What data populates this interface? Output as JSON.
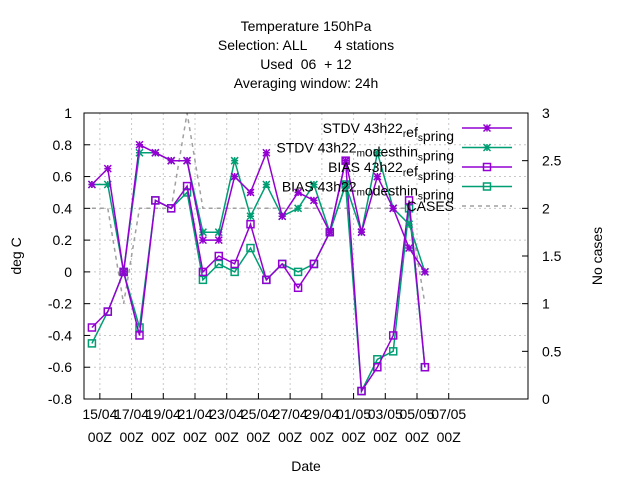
{
  "chart_data": {
    "type": "line",
    "title_lines": [
      "Temperature 150hPa",
      "Selection: ALL       4 stations",
      "Used  06  + 12",
      "Averaging window: 24h"
    ],
    "xlabel": "Date",
    "ylabel": "deg C",
    "y2label": "No cases",
    "ylim": [
      -0.8,
      1.0
    ],
    "y2lim": [
      0,
      3
    ],
    "yticks": [
      "1",
      "0.8",
      "0.6",
      "0.4",
      "0.2",
      "0",
      "-0.2",
      "-0.4",
      "-0.6",
      "-0.8"
    ],
    "y2ticks": [
      "3",
      "2.5",
      "2",
      "1.5",
      "1",
      "0.5",
      "0"
    ],
    "x_tick_labels": [
      [
        "15/04",
        "00Z"
      ],
      [
        "17/04",
        "00Z"
      ],
      [
        "19/04",
        "00Z"
      ],
      [
        "21/04",
        "00Z"
      ],
      [
        "23/04",
        "00Z"
      ],
      [
        "25/04",
        "00Z"
      ],
      [
        "27/04",
        "00Z"
      ],
      [
        "29/04",
        "00Z"
      ],
      [
        "01/05",
        "00Z"
      ],
      [
        "03/05",
        "00Z"
      ],
      [
        "05/05",
        "00Z"
      ],
      [
        "07/05",
        "00Z"
      ]
    ],
    "x": [
      0,
      1,
      2,
      3,
      4,
      5,
      6,
      7,
      7.5,
      8,
      9,
      10,
      11,
      12,
      13,
      14,
      15,
      16,
      17,
      18,
      19,
      20,
      21,
      22,
      23,
      24,
      25,
      26,
      27
    ],
    "grid": true,
    "legend_position": "top-right",
    "series": [
      {
        "name": "STDV 43h22_ref_spring",
        "legend": "STDV 43h22_ref_spring",
        "color": "#9400d3",
        "marker": "x",
        "axis": "y",
        "values": [
          0.55,
          0.65,
          0.0,
          0.8,
          0.75,
          0.7,
          0.7,
          0.2,
          null,
          0.2,
          0.6,
          0.5,
          0.75,
          0.35,
          0.5,
          0.45,
          0.25,
          0.7,
          0.25,
          0.6,
          0.4,
          0.15,
          0.0,
          null,
          null,
          null,
          null,
          null,
          null
        ]
      },
      {
        "name": "STDV 43h22_modesthin_spring",
        "legend": "STDV 43h22_modesthin_spring",
        "color": "#009e73",
        "marker": "x",
        "axis": "y",
        "values": [
          0.55,
          0.55,
          0.0,
          0.75,
          0.75,
          0.7,
          0.7,
          0.25,
          null,
          0.25,
          0.7,
          0.35,
          0.55,
          0.35,
          0.4,
          0.55,
          0.25,
          0.55,
          0.25,
          0.75,
          0.4,
          0.3,
          0.0,
          null,
          null,
          null,
          null,
          null,
          null
        ]
      },
      {
        "name": "BIAS 43h22_ref_spring",
        "legend": "BIAS 43h22_ref_spring",
        "color": "#9400d3",
        "marker": "square",
        "axis": "y",
        "values": [
          -0.35,
          -0.25,
          0.0,
          -0.4,
          0.45,
          0.4,
          0.54,
          0.0,
          null,
          0.1,
          0.05,
          0.3,
          -0.05,
          0.05,
          -0.1,
          0.05,
          0.25,
          0.7,
          -0.75,
          -0.6,
          -0.4,
          0.45,
          -0.6,
          null,
          null,
          null,
          null,
          null,
          null
        ]
      },
      {
        "name": "BIAS 43h22_modesthin_spring",
        "legend": "BIAS 43h22_modesthin_spring",
        "color": "#009e73",
        "marker": "square",
        "axis": "y",
        "values": [
          -0.45,
          -0.25,
          0.0,
          -0.35,
          0.45,
          0.4,
          0.5,
          -0.05,
          null,
          0.05,
          0.0,
          0.15,
          -0.05,
          0.05,
          0.0,
          0.05,
          0.25,
          0.55,
          -0.75,
          -0.55,
          -0.5,
          0.4,
          -0.6,
          null,
          null,
          null,
          null,
          null,
          null
        ]
      },
      {
        "name": "CASES",
        "legend": "CASES",
        "color": "#a0a0a0",
        "marker": "none",
        "dashed": true,
        "axis": "y2",
        "values": [
          2.0,
          2.0,
          1.0,
          2.0,
          2.0,
          2.0,
          3.0,
          2.0,
          null,
          2.0,
          2.0,
          2.0,
          2.0,
          2.0,
          2.0,
          2.0,
          2.0,
          2.0,
          2.0,
          2.0,
          2.0,
          2.0,
          1.0,
          null,
          null,
          null,
          null,
          null,
          null
        ]
      }
    ]
  }
}
